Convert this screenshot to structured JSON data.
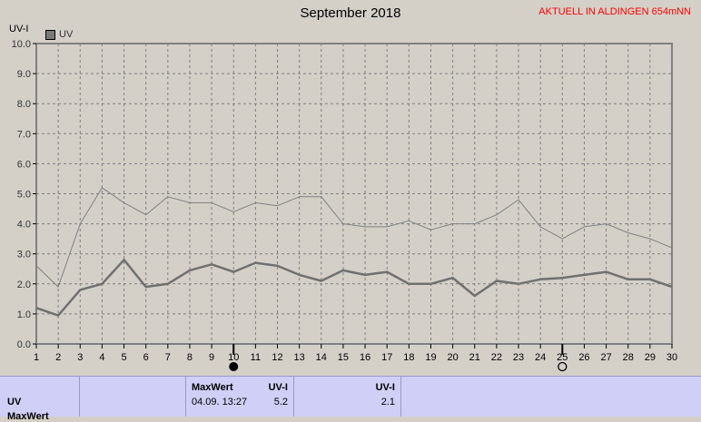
{
  "title": "September 2018",
  "station_label": "AKTUELL IN ALDINGEN 654mNN",
  "colors": {
    "background": "#d4d0c8",
    "grid": "#808080",
    "upper_line": "#808080",
    "main_line": "#707070",
    "station_text": "#ff0000",
    "summary_bg": "#cfcff7"
  },
  "chart_data": {
    "type": "line",
    "ylabel": "UV-I",
    "ylim": [
      0,
      10
    ],
    "y_ticks": [
      "0.0",
      "1.0",
      "2.0",
      "3.0",
      "4.0",
      "5.0",
      "6.0",
      "7.0",
      "8.0",
      "9.0",
      "10.0"
    ],
    "x": [
      "1",
      "2",
      "3",
      "4",
      "5",
      "6",
      "7",
      "8",
      "9",
      "10",
      "11",
      "12",
      "13",
      "14",
      "15",
      "16",
      "17",
      "18",
      "19",
      "20",
      "21",
      "22",
      "23",
      "24",
      "25",
      "26",
      "27",
      "28",
      "29",
      "30"
    ],
    "grid": true,
    "legend": {
      "placement": "top-left",
      "entries": [
        "UV"
      ]
    },
    "series": [
      {
        "name": "UV",
        "values": [
          1.2,
          0.95,
          1.8,
          2.0,
          2.8,
          1.9,
          2.0,
          2.45,
          2.65,
          2.4,
          2.7,
          2.6,
          2.3,
          2.1,
          2.45,
          2.3,
          2.4,
          2.0,
          2.0,
          2.2,
          1.6,
          2.1,
          2.0,
          2.15,
          2.2,
          2.3,
          2.4,
          2.15,
          2.15,
          1.9
        ]
      },
      {
        "values": [
          2.6,
          1.9,
          4.0,
          5.2,
          4.7,
          4.3,
          4.9,
          4.7,
          4.7,
          4.4,
          4.7,
          4.6,
          4.9,
          4.9,
          4.0,
          3.9,
          3.9,
          4.1,
          3.8,
          4.0,
          4.0,
          4.3,
          4.8,
          3.9,
          3.5,
          3.9,
          4.0,
          3.7,
          3.5,
          3.2
        ]
      }
    ],
    "moon_markers": [
      {
        "day": "10",
        "phase": "new-moon"
      },
      {
        "day": "25",
        "phase": "full-moon"
      }
    ]
  },
  "summary": {
    "row_label": "UV",
    "row2_label": "MaxWert",
    "max_header": "MaxWert",
    "unit_header": "UV-I",
    "max_datetime": "04.09.  13:27",
    "max_value": "5.2",
    "avg_header": "UV-I",
    "avg_value": "2.1"
  }
}
